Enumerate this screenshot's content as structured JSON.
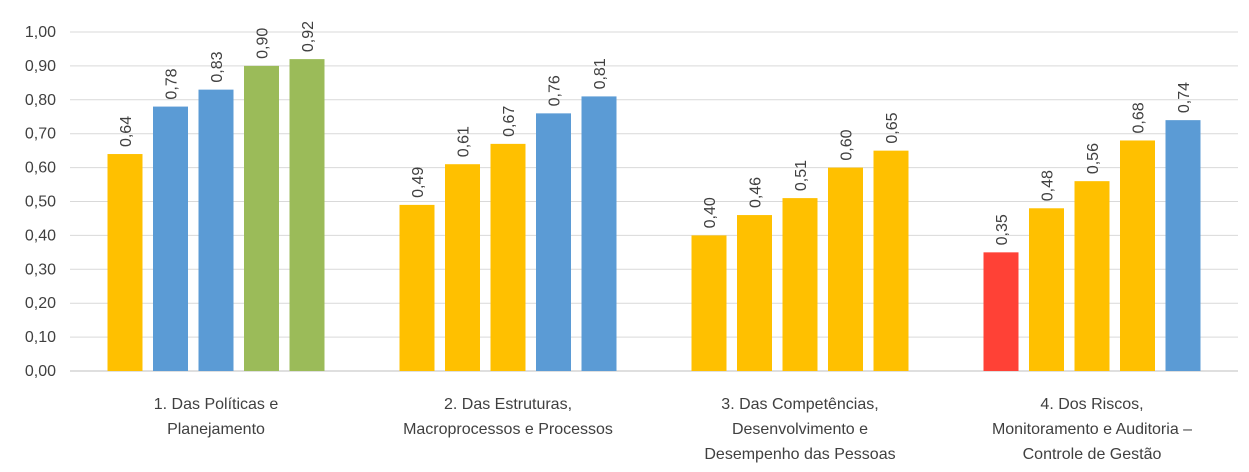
{
  "chart_data": {
    "type": "bar",
    "ylim": [
      0,
      1.0
    ],
    "ystep": 0.1,
    "grid": true,
    "colors": {
      "yellow": "#FFC000",
      "blue": "#5B9BD5",
      "green": "#9BBB59",
      "red": "#FF4136",
      "grid": "#D9D9D9",
      "text": "#404040"
    },
    "yticks": [
      "0,00",
      "0,10",
      "0,20",
      "0,30",
      "0,40",
      "0,50",
      "0,60",
      "0,70",
      "0,80",
      "0,90",
      "1,00"
    ],
    "groups": [
      {
        "label_lines": [
          "1. Das Políticas e",
          "Planejamento"
        ],
        "bars": [
          {
            "value": 0.64,
            "label": "0,64",
            "color": "yellow"
          },
          {
            "value": 0.78,
            "label": "0,78",
            "color": "blue"
          },
          {
            "value": 0.83,
            "label": "0,83",
            "color": "blue"
          },
          {
            "value": 0.9,
            "label": "0,90",
            "color": "green"
          },
          {
            "value": 0.92,
            "label": "0,92",
            "color": "green"
          }
        ]
      },
      {
        "label_lines": [
          "2. Das Estruturas,",
          "Macroprocessos e Processos"
        ],
        "bars": [
          {
            "value": 0.49,
            "label": "0,49",
            "color": "yellow"
          },
          {
            "value": 0.61,
            "label": "0,61",
            "color": "yellow"
          },
          {
            "value": 0.67,
            "label": "0,67",
            "color": "yellow"
          },
          {
            "value": 0.76,
            "label": "0,76",
            "color": "blue"
          },
          {
            "value": 0.81,
            "label": "0,81",
            "color": "blue"
          }
        ]
      },
      {
        "label_lines": [
          "3. Das Competências,",
          "Desenvolvimento e",
          "Desempenho das Pessoas"
        ],
        "bars": [
          {
            "value": 0.4,
            "label": "0,40",
            "color": "yellow"
          },
          {
            "value": 0.46,
            "label": "0,46",
            "color": "yellow"
          },
          {
            "value": 0.51,
            "label": "0,51",
            "color": "yellow"
          },
          {
            "value": 0.6,
            "label": "0,60",
            "color": "yellow"
          },
          {
            "value": 0.65,
            "label": "0,65",
            "color": "yellow"
          }
        ]
      },
      {
        "label_lines": [
          "4. Dos Riscos,",
          "Monitoramento e Auditoria –",
          "Controle de Gestão"
        ],
        "bars": [
          {
            "value": 0.35,
            "label": "0,35",
            "color": "red"
          },
          {
            "value": 0.48,
            "label": "0,48",
            "color": "yellow"
          },
          {
            "value": 0.56,
            "label": "0,56",
            "color": "yellow"
          },
          {
            "value": 0.68,
            "label": "0,68",
            "color": "yellow"
          },
          {
            "value": 0.74,
            "label": "0,74",
            "color": "blue"
          }
        ]
      }
    ]
  }
}
